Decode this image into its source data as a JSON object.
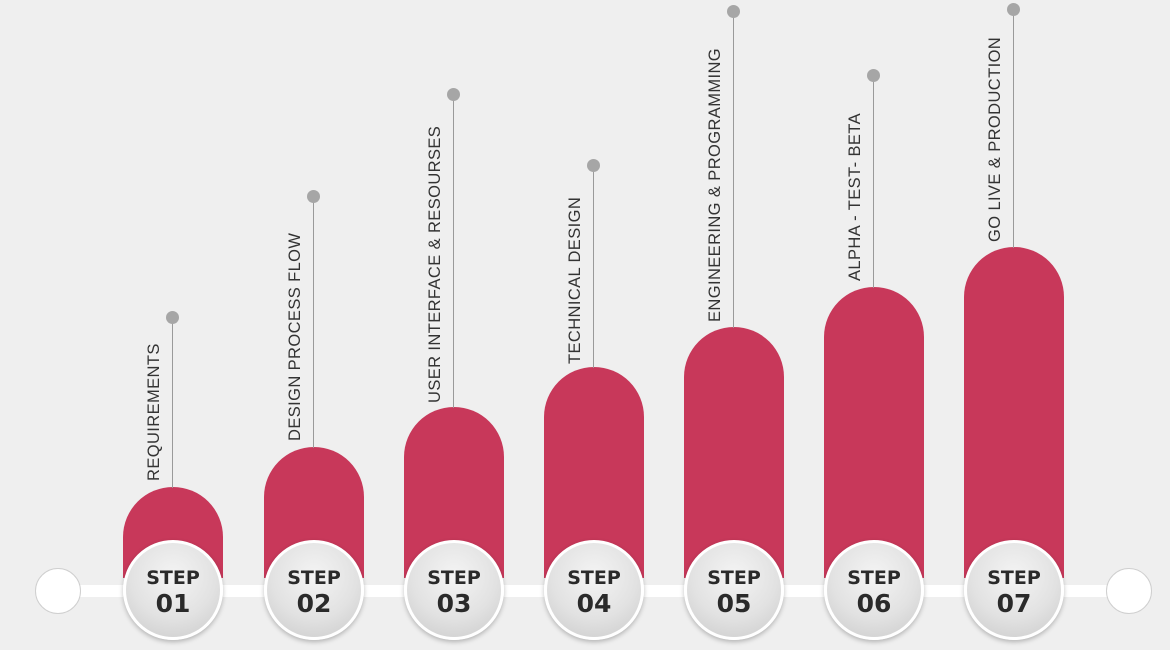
{
  "accent_color": "#c8385a",
  "steps": [
    {
      "label": "REQUIREMENTS",
      "word": "STEP",
      "number": "01"
    },
    {
      "label": "DESIGN PROCESS FLOW",
      "word": "STEP",
      "number": "02"
    },
    {
      "label": "USER INTERFACE & RESOURSES",
      "word": "STEP",
      "number": "03"
    },
    {
      "label": "TECHNICAL DESIGN",
      "word": "STEP",
      "number": "04"
    },
    {
      "label": "ENGINEERING &  PROGRAMMING",
      "word": "STEP",
      "number": "05"
    },
    {
      "label": "ALPHA - TEST- BETA",
      "word": "STEP",
      "number": "06"
    },
    {
      "label": "GO LIVE & PRODUCTION",
      "word": "STEP",
      "number": "07"
    }
  ]
}
